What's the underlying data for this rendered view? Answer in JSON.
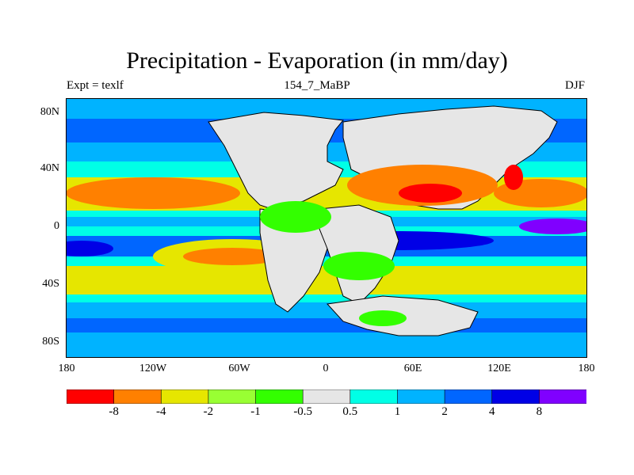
{
  "title": "Precipitation - Evaporation (in mm/day)",
  "left_label": "Expt = texlf",
  "center_label": "154_7_MaBP",
  "right_label": "DJF",
  "axes": {
    "y_ticks": [
      "80N",
      "40N",
      "0",
      "40S",
      "80S"
    ],
    "x_ticks": [
      "180",
      "120W",
      "60W",
      "0",
      "60E",
      "120E",
      "180"
    ]
  },
  "colorbar": {
    "colors": [
      "#ff0000",
      "#ff8000",
      "#e6e600",
      "#99ff33",
      "#33ff00",
      "#e6e6e6",
      "#00ffe6",
      "#00b3ff",
      "#0066ff",
      "#0000e6",
      "#8000ff"
    ],
    "labels": [
      "-8",
      "-4",
      "-2",
      "-1",
      "-0.5",
      "0.5",
      "1",
      "2",
      "4",
      "8"
    ]
  },
  "colors": {
    "very_dry": "#ff0000",
    "dry": "#ff8000",
    "neutral": "#e6e6e6",
    "wet": "#0066ff",
    "very_wet": "#8000ff"
  }
}
